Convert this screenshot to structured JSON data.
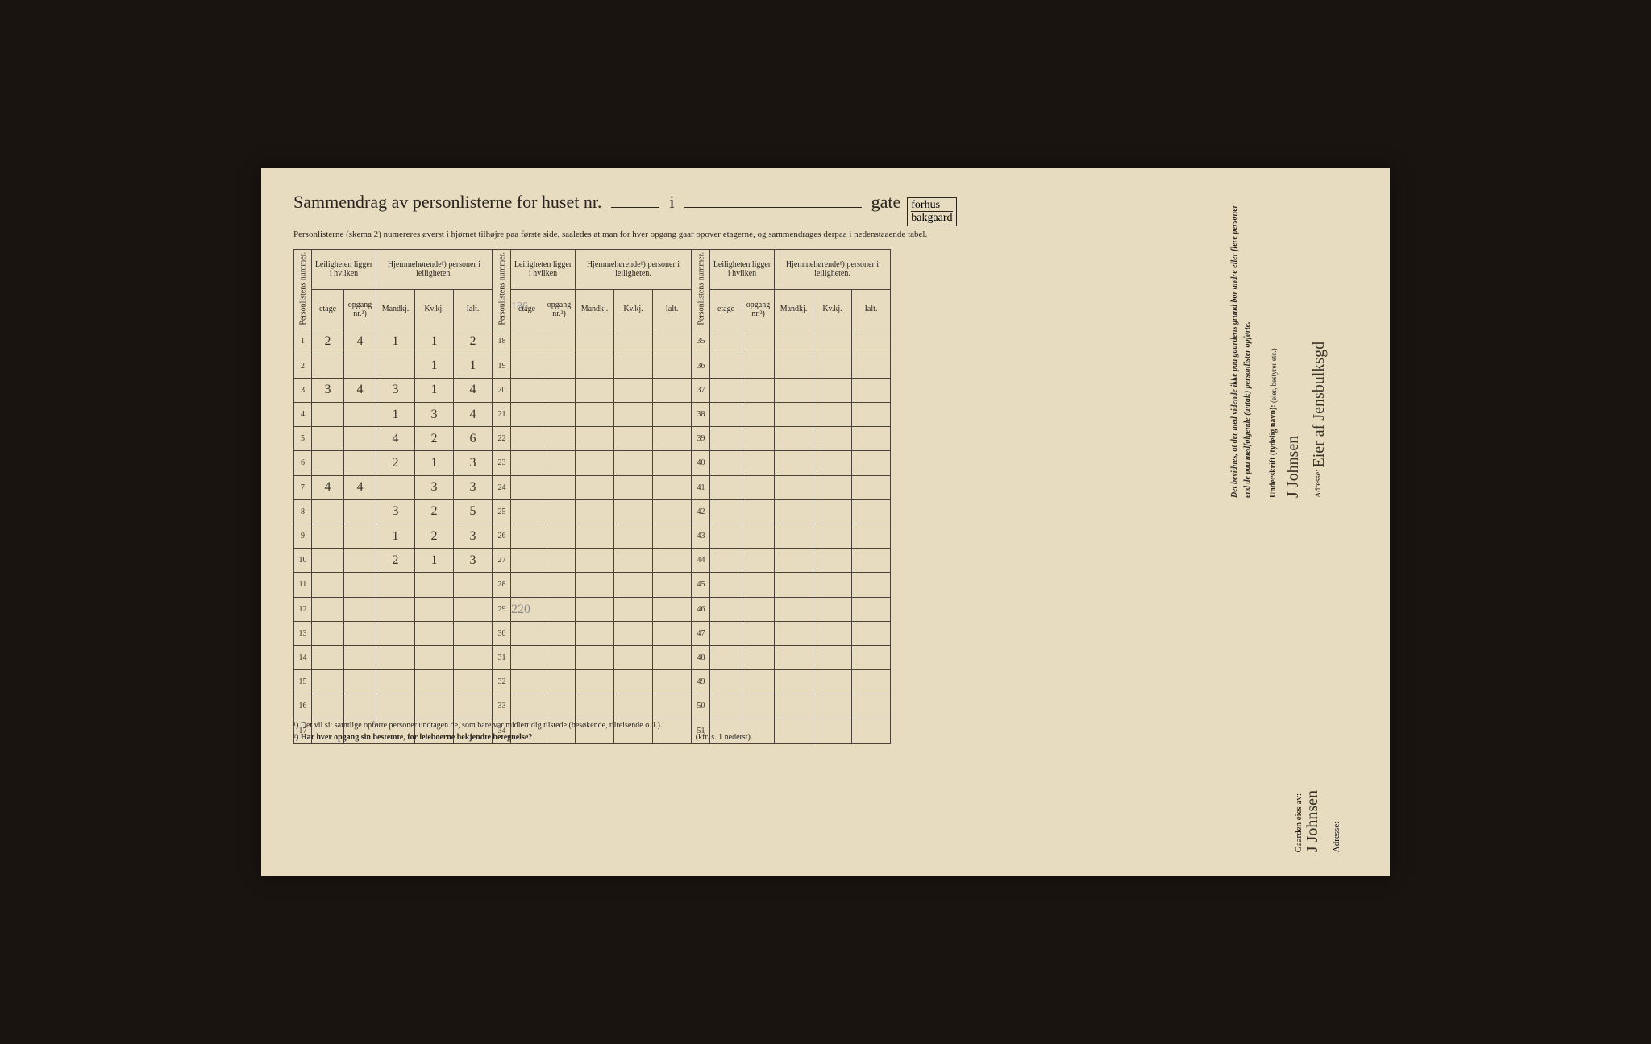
{
  "title": {
    "main": "Sammendrag av personlisterne for huset nr.",
    "i": "i",
    "gate": "gate",
    "fraction_top": "forhus",
    "fraction_bottom": "bakgaard"
  },
  "subtitle": "Personlisterne (skema 2) numereres øverst i hjørnet tilhøjre paa første side, saaledes at man for hver opgang gaar opover etagerne, og sammendrages derpaa i nedenstaaende tabel.",
  "headers": {
    "personlistens_nummer": "Personlistens nummer.",
    "leiligheten": "Leiligheten ligger i hvilken",
    "hjemmehorende": "Hjemmehørende¹) personer i leiligheten.",
    "etage": "etage",
    "opgang": "opgang nr.²)",
    "mandkj": "Mandkj.",
    "kvkj": "Kv.kj.",
    "ialt": "Ialt."
  },
  "rows_a": [
    {
      "n": "1",
      "etage": "2",
      "opgang": "4",
      "m": "1",
      "k": "1",
      "i": "2"
    },
    {
      "n": "2",
      "etage": "",
      "opgang": "",
      "m": "",
      "k": "1",
      "i": "1"
    },
    {
      "n": "3",
      "etage": "3",
      "opgang": "4",
      "m": "3",
      "k": "1",
      "i": "4"
    },
    {
      "n": "4",
      "etage": "",
      "opgang": "",
      "m": "1",
      "k": "3",
      "i": "4"
    },
    {
      "n": "5",
      "etage": "",
      "opgang": "",
      "m": "4",
      "k": "2",
      "i": "6"
    },
    {
      "n": "6",
      "etage": "",
      "opgang": "",
      "m": "2",
      "k": "1",
      "i": "3"
    },
    {
      "n": "7",
      "etage": "4",
      "opgang": "4",
      "m": "",
      "k": "3",
      "i": "3"
    },
    {
      "n": "8",
      "etage": "",
      "opgang": "",
      "m": "3",
      "k": "2",
      "i": "5"
    },
    {
      "n": "9",
      "etage": "",
      "opgang": "",
      "m": "1",
      "k": "2",
      "i": "3"
    },
    {
      "n": "10",
      "etage": "",
      "opgang": "",
      "m": "2",
      "k": "1",
      "i": "3"
    },
    {
      "n": "11",
      "etage": "",
      "opgang": "",
      "m": "",
      "k": "",
      "i": ""
    },
    {
      "n": "12",
      "etage": "",
      "opgang": "",
      "m": "",
      "k": "",
      "i": ""
    },
    {
      "n": "13",
      "etage": "",
      "opgang": "",
      "m": "",
      "k": "",
      "i": ""
    },
    {
      "n": "14",
      "etage": "",
      "opgang": "",
      "m": "",
      "k": "",
      "i": ""
    },
    {
      "n": "15",
      "etage": "",
      "opgang": "",
      "m": "",
      "k": "",
      "i": ""
    },
    {
      "n": "16",
      "etage": "",
      "opgang": "",
      "m": "",
      "k": "",
      "i": ""
    },
    {
      "n": "17",
      "etage": "",
      "opgang": "",
      "m": "",
      "k": "",
      "i": ""
    }
  ],
  "rows_b": [
    {
      "n": "18"
    },
    {
      "n": "19"
    },
    {
      "n": "20"
    },
    {
      "n": "21"
    },
    {
      "n": "22"
    },
    {
      "n": "23"
    },
    {
      "n": "24"
    },
    {
      "n": "25"
    },
    {
      "n": "26"
    },
    {
      "n": "27"
    },
    {
      "n": "28"
    },
    {
      "n": "29"
    },
    {
      "n": "30"
    },
    {
      "n": "31"
    },
    {
      "n": "32"
    },
    {
      "n": "33"
    },
    {
      "n": "34"
    }
  ],
  "rows_c": [
    {
      "n": "35"
    },
    {
      "n": "36"
    },
    {
      "n": "37"
    },
    {
      "n": "38"
    },
    {
      "n": "39"
    },
    {
      "n": "40"
    },
    {
      "n": "41"
    },
    {
      "n": "42"
    },
    {
      "n": "43"
    },
    {
      "n": "44"
    },
    {
      "n": "45"
    },
    {
      "n": "46"
    },
    {
      "n": "47"
    },
    {
      "n": "48"
    },
    {
      "n": "49"
    },
    {
      "n": "50"
    },
    {
      "n": "51"
    }
  ],
  "pencil": {
    "total": "220",
    "top_note": "186"
  },
  "footnotes": {
    "f1": "¹) Det vil si: samtlige opførte personer undtagen de, som bare var midlertidig tilstede (besøkende, tilreisende o. l.).",
    "f2": "²) Har hver opgang sin bestemte, for leieboerne bekjendte betegnelse?",
    "f2_suffix": "(kfr. s. 1 nederst)."
  },
  "right": {
    "attest": "Det bevidnes, at der med vidende ikke paa gaardens grund bor andre eller flere personer end de paa medfølgende (antal:) personlister opførte.",
    "underskrift_label": "Underskrift (tydelig navn):",
    "eier_label": "(eier, bestyrer etc.)",
    "adresse_label": "Adresse:",
    "signature": "J Johnsen",
    "address": "Eier af Jensbulksgd",
    "gaarden_label": "Gaarden eies av:",
    "gaarden_sig": "J Johnsen"
  },
  "colors": {
    "paper": "#e8dcc0",
    "ink": "#2a2520",
    "handwriting": "#3a3428",
    "pencil": "#888888"
  }
}
